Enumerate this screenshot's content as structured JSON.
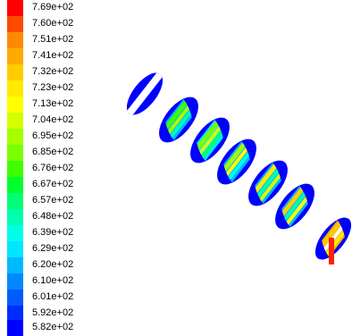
{
  "legend": {
    "labels": [
      "7.69e+02",
      "7.60e+02",
      "7.51e+02",
      "7.41e+02",
      "7.32e+02",
      "7.23e+02",
      "7.13e+02",
      "7.04e+02",
      "6.95e+02",
      "6.85e+02",
      "6.76e+02",
      "6.67e+02",
      "6.57e+02",
      "6.48e+02",
      "6.39e+02",
      "6.29e+02",
      "6.20e+02",
      "6.10e+02",
      "6.01e+02",
      "5.92e+02",
      "5.82e+02"
    ],
    "colors": [
      "#ff0000",
      "#ff4a00",
      "#ff8a00",
      "#ffaa00",
      "#ffcc00",
      "#ffea00",
      "#ffff00",
      "#d4ff00",
      "#a6ff00",
      "#7aff00",
      "#3dff00",
      "#00ff2f",
      "#00ff77",
      "#00ffb0",
      "#00ffe6",
      "#00e6ff",
      "#00b8ff",
      "#0089ff",
      "#005bff",
      "#002dff",
      "#0000ff"
    ]
  }
}
